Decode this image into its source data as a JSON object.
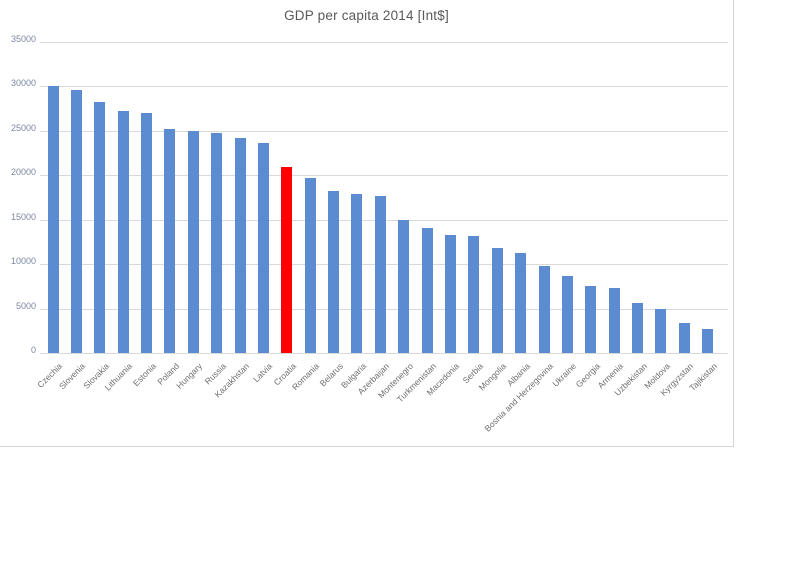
{
  "chart_data": {
    "type": "bar",
    "title": "GDP per capita 2014 [Int$]",
    "categories": [
      "Czechia",
      "Slovenia",
      "Slovakia",
      "Lithuania",
      "Estonia",
      "Poland",
      "Hungary",
      "Russia",
      "Kazakhstan",
      "Latvia",
      "Croatia",
      "Romania",
      "Belarus",
      "Bulgaria",
      "Azerbaijan",
      "Montenegro",
      "Turkmenistan",
      "Macedonia",
      "Serbia",
      "Mongolia",
      "Albania",
      "Bosnia and Herzegovina",
      "Ukraine",
      "Georgia",
      "Armenia",
      "Uzbekistan",
      "Moldova",
      "Kyrgyzstan",
      "Tajikistan"
    ],
    "values": [
      30000,
      29600,
      28200,
      27200,
      27000,
      25200,
      25000,
      24800,
      24200,
      23600,
      20900,
      19700,
      18200,
      17900,
      17700,
      15000,
      14100,
      13300,
      13200,
      11800,
      11300,
      9800,
      8700,
      7600,
      7300,
      5600,
      5000,
      3400,
      2700
    ],
    "highlight_category": "Croatia",
    "highlight_index": 10,
    "xlabel": "",
    "ylabel": "",
    "ylim": [
      0,
      35000
    ],
    "yticks": [
      0,
      5000,
      10000,
      15000,
      20000,
      25000,
      30000,
      35000
    ],
    "ytick_labels": [
      "0",
      "5000",
      "10000",
      "15000",
      "20000",
      "25000",
      "30000",
      "35000"
    ],
    "grid": "horizontal",
    "legend": "none",
    "colors": {
      "bar": "#5b8bd0",
      "highlight": "#ff0000",
      "gridline": "#d9d9d9",
      "axis_line": "#d9d9d9",
      "chart_border": "#d5d5d5",
      "title_text": "#595959",
      "ytick_text": "#7d87a1",
      "xtick_text": "#6f6f6f"
    }
  }
}
